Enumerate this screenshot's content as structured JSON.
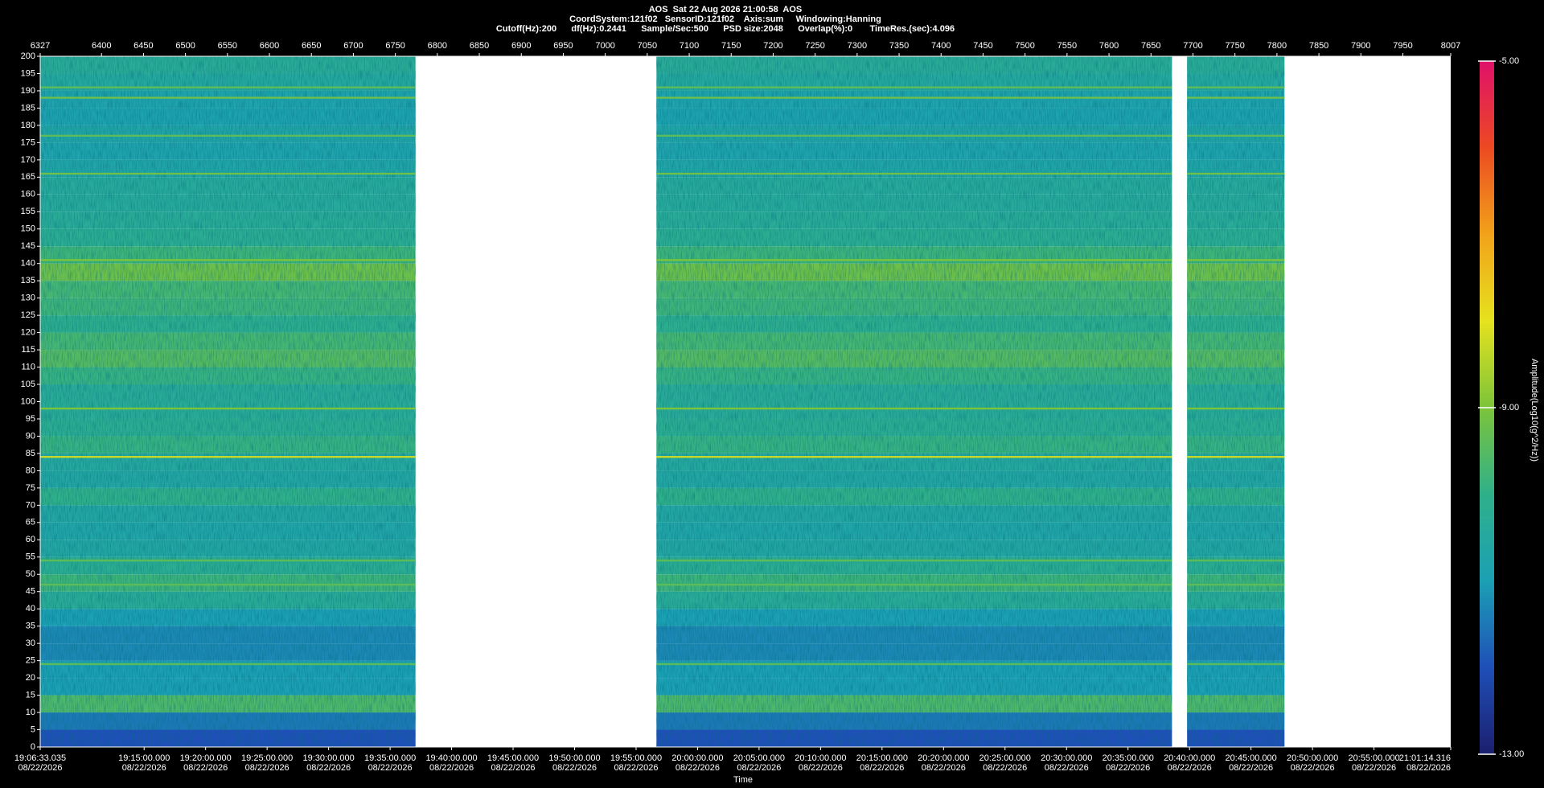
{
  "chart_data": {
    "type": "spectrogram",
    "title": "AOS  Sat 22 Aug 2026 21:00:58  AOS",
    "subtitle": [
      "CoordSystem:121f02   SensorID:121f02    Axis:sum     Windowing:Hanning",
      "Cutoff(Hz):200      df(Hz):0.2441      Sample/Sec:500      PSD size:2048      Overlap(%):0       TimeRes.(sec):4.096"
    ],
    "xlabel": "Time",
    "colorbar_label": "Amplitude(Log10(g^2/Hz))",
    "xlim": [
      6327,
      8007
    ],
    "xticks": [
      6327,
      6400,
      6450,
      6500,
      6550,
      6600,
      6650,
      6700,
      6750,
      6800,
      6850,
      6900,
      6950,
      7000,
      7050,
      7100,
      7150,
      7200,
      7250,
      7300,
      7350,
      7400,
      7450,
      7500,
      7550,
      7600,
      7650,
      7700,
      7750,
      7800,
      7850,
      7900,
      7950,
      8007
    ],
    "x2lim": [
      68793.035,
      75674.316
    ],
    "x2ticks": [
      {
        "value": 68793.035,
        "label": "19:06:33.035",
        "date": "08/22/2026"
      },
      {
        "value": 69300,
        "label": "19:15:00.000",
        "date": "08/22/2026"
      },
      {
        "value": 69600,
        "label": "19:20:00.000",
        "date": "08/22/2026"
      },
      {
        "value": 69900,
        "label": "19:25:00.000",
        "date": "08/22/2026"
      },
      {
        "value": 70200,
        "label": "19:30:00.000",
        "date": "08/22/2026"
      },
      {
        "value": 70500,
        "label": "19:35:00.000",
        "date": "08/22/2026"
      },
      {
        "value": 70800,
        "label": "19:40:00.000",
        "date": "08/22/2026"
      },
      {
        "value": 71100,
        "label": "19:45:00.000",
        "date": "08/22/2026"
      },
      {
        "value": 71400,
        "label": "19:50:00.000",
        "date": "08/22/2026"
      },
      {
        "value": 71700,
        "label": "19:55:00.000",
        "date": "08/22/2026"
      },
      {
        "value": 72000,
        "label": "20:00:00.000",
        "date": "08/22/2026"
      },
      {
        "value": 72300,
        "label": "20:05:00.000",
        "date": "08/22/2026"
      },
      {
        "value": 72600,
        "label": "20:10:00.000",
        "date": "08/22/2026"
      },
      {
        "value": 72900,
        "label": "20:15:00.000",
        "date": "08/22/2026"
      },
      {
        "value": 73200,
        "label": "20:20:00.000",
        "date": "08/22/2026"
      },
      {
        "value": 73500,
        "label": "20:25:00.000",
        "date": "08/22/2026"
      },
      {
        "value": 73800,
        "label": "20:30:00.000",
        "date": "08/22/2026"
      },
      {
        "value": 74100,
        "label": "20:35:00.000",
        "date": "08/22/2026"
      },
      {
        "value": 74400,
        "label": "20:40:00.000",
        "date": "08/22/2026"
      },
      {
        "value": 74700,
        "label": "20:45:00.000",
        "date": "08/22/2026"
      },
      {
        "value": 75000,
        "label": "20:50:00.000",
        "date": "08/22/2026"
      },
      {
        "value": 75300,
        "label": "20:55:00.000",
        "date": "08/22/2026"
      },
      {
        "value": 75674.316,
        "label": "21:01:14.316",
        "date": "08/22/2026"
      }
    ],
    "ylim": [
      0,
      200
    ],
    "yticks": [
      0,
      5,
      10,
      15,
      20,
      25,
      30,
      35,
      40,
      45,
      50,
      55,
      60,
      65,
      70,
      75,
      80,
      85,
      90,
      95,
      100,
      105,
      110,
      115,
      120,
      125,
      130,
      135,
      140,
      145,
      150,
      155,
      160,
      165,
      170,
      175,
      180,
      185,
      190,
      195,
      200
    ],
    "zlim": [
      -13,
      -5
    ],
    "zticks": [
      {
        "value": -5,
        "label": "-5.00"
      },
      {
        "value": -9,
        "label": "-9.00"
      },
      {
        "value": -13,
        "label": "-13.00"
      }
    ],
    "colormap": [
      "#1b1f6e",
      "#1f4fb8",
      "#1ba0b4",
      "#2fb08a",
      "#7cc43a",
      "#e6e21e",
      "#f2a21a",
      "#ec4a22",
      "#e0106a"
    ],
    "segments": [
      [
        6327,
        6774
      ],
      [
        7061,
        7675
      ],
      [
        7693,
        7809
      ]
    ],
    "band_values": [
      -12,
      -11.5,
      -9.6,
      -11,
      -11,
      -11.3,
      -11.3,
      -11,
      -10.3,
      -9.8,
      -10.2,
      -10.6,
      -10.7,
      -10.6,
      -10,
      -10.6,
      -10.5,
      -9.9,
      -10.2,
      -10.3,
      -10.3,
      -9.9,
      -9.5,
      -9.7,
      -10.1,
      -9.8,
      -9.7,
      -9.2,
      -9.8,
      -10.2,
      -10.3,
      -10.4,
      -10.4,
      -10.7,
      -10.8,
      -10.7,
      -10.9,
      -10.8,
      -10.5,
      -10.3
    ],
    "lines": [
      {
        "freq": 24,
        "value": -9.4
      },
      {
        "freq": 47,
        "value": -9.4
      },
      {
        "freq": 54,
        "value": -9.4
      },
      {
        "freq": 84,
        "value": -8.3
      },
      {
        "freq": 98,
        "value": -9
      },
      {
        "freq": 141,
        "value": -9
      },
      {
        "freq": 166,
        "value": -9.2
      },
      {
        "freq": 177,
        "value": -9.4
      },
      {
        "freq": 188,
        "value": -9.2
      },
      {
        "freq": 191,
        "value": -9.4
      }
    ]
  }
}
